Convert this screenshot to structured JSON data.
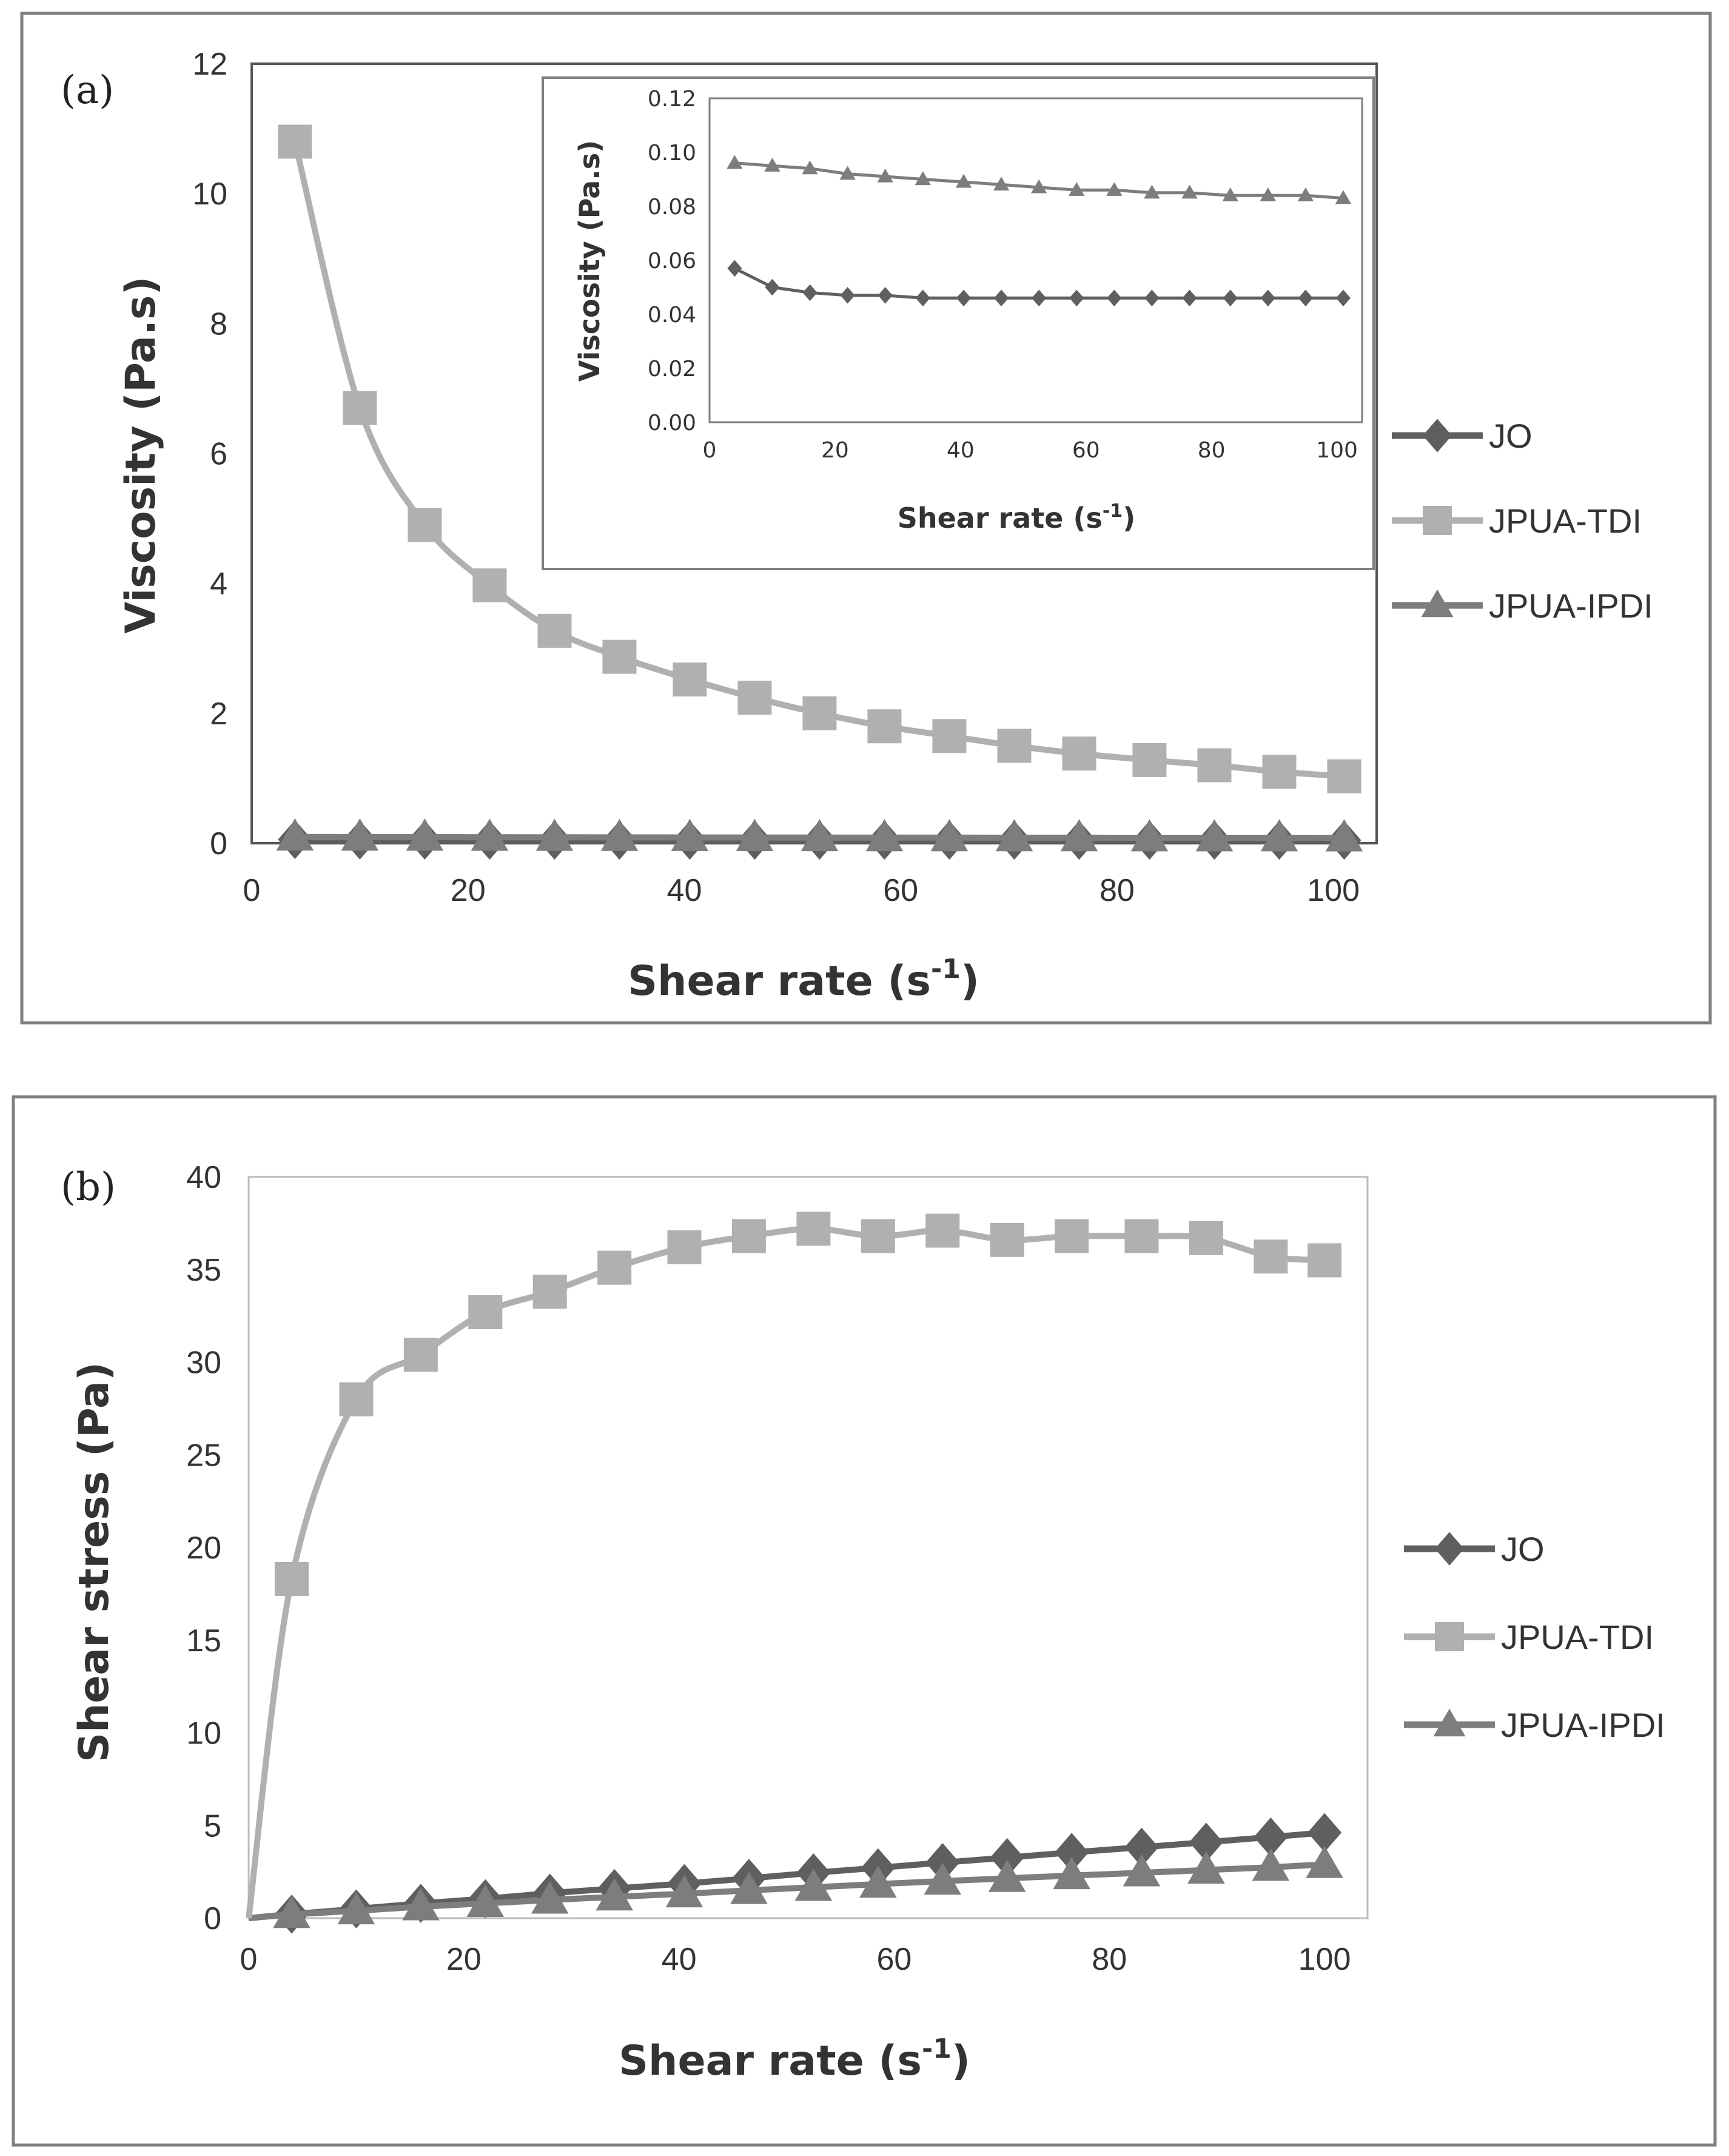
{
  "chart_data": [
    {
      "type": "line",
      "panel_label": "(a)",
      "xlabel": "Shear rate (s",
      "xlabel_sup": "-1",
      "xlabel_close": ")",
      "ylabel": "Viscosity (Pa.s)",
      "xlim": [
        0,
        100
      ],
      "ylim": [
        0,
        12
      ],
      "xticks": [
        "0",
        "20",
        "40",
        "60",
        "80",
        "100"
      ],
      "yticks": [
        "0",
        "2",
        "4",
        "6",
        "8",
        "10",
        "12"
      ],
      "x": [
        4,
        10,
        16,
        22,
        28,
        34,
        40.5,
        46.5,
        52.5,
        58.5,
        64.5,
        70.5,
        76.5,
        83,
        89,
        95,
        101
      ],
      "series": [
        {
          "name": "JO",
          "marker": "diamond",
          "color": "#5f5f5f",
          "values": [
            0.057,
            0.05,
            0.048,
            0.047,
            0.047,
            0.046,
            0.046,
            0.046,
            0.046,
            0.046,
            0.046,
            0.046,
            0.046,
            0.046,
            0.046,
            0.046,
            0.046
          ]
        },
        {
          "name": "JPUA-TDI",
          "marker": "square",
          "color": "#b0b0b0",
          "values": [
            10.8,
            6.7,
            4.9,
            3.97,
            3.27,
            2.87,
            2.52,
            2.24,
            2.0,
            1.8,
            1.65,
            1.5,
            1.38,
            1.28,
            1.2,
            1.1,
            1.03
          ]
        },
        {
          "name": "JPUA-IPDI",
          "marker": "triangle",
          "color": "#7d7d7d",
          "values": [
            0.096,
            0.095,
            0.094,
            0.092,
            0.091,
            0.09,
            0.089,
            0.088,
            0.087,
            0.086,
            0.086,
            0.085,
            0.085,
            0.084,
            0.084,
            0.084,
            0.083
          ]
        }
      ],
      "legend": [
        "JO",
        "JPUA-TDI",
        "JPUA-IPDI"
      ],
      "legend_position": "right",
      "inset": {
        "xlabel": "Shear rate (s",
        "xlabel_sup": "-1",
        "xlabel_close": ")",
        "ylabel": "Viscosity (Pa.s)",
        "xlim": [
          0,
          104
        ],
        "ylim": [
          0,
          0.12
        ],
        "xticks": [
          "0",
          "20",
          "40",
          "60",
          "80",
          "100"
        ],
        "yticks": [
          "0.00",
          "0.02",
          "0.04",
          "0.06",
          "0.08",
          "0.10",
          "0.12"
        ],
        "series_refs": [
          "JO",
          "JPUA-IPDI"
        ]
      }
    },
    {
      "type": "line",
      "panel_label": "(b)",
      "xlabel": "Shear rate (s",
      "xlabel_sup": "-1",
      "xlabel_close": ")",
      "ylabel": "Shear stress (Pa)",
      "xlim": [
        0,
        104
      ],
      "ylim": [
        0,
        40
      ],
      "xticks": [
        "0",
        "20",
        "40",
        "60",
        "80",
        "100"
      ],
      "yticks": [
        "0",
        "5",
        "10",
        "15",
        "20",
        "25",
        "30",
        "35",
        "40"
      ],
      "x": [
        0,
        4,
        10,
        16,
        22,
        28,
        34,
        40.5,
        46.5,
        52.5,
        58.5,
        64.5,
        70.5,
        76.5,
        83,
        89,
        95,
        100
      ],
      "series": [
        {
          "name": "JO",
          "marker": "diamond",
          "color": "#5f5f5f",
          "values": [
            0,
            0.22,
            0.5,
            0.8,
            1.05,
            1.35,
            1.6,
            1.87,
            2.15,
            2.45,
            2.72,
            3.0,
            3.27,
            3.55,
            3.83,
            4.1,
            4.38,
            4.62
          ]
        },
        {
          "name": "JPUA-TDI",
          "marker": "square",
          "color": "#b0b0b0",
          "values": [
            0,
            18.3,
            28.0,
            30.4,
            32.7,
            33.8,
            35.1,
            36.2,
            36.8,
            37.2,
            36.8,
            37.1,
            36.6,
            36.8,
            36.8,
            36.7,
            35.7,
            35.5
          ]
        },
        {
          "name": "JPUA-IPDI",
          "marker": "triangle",
          "color": "#7d7d7d",
          "values": [
            0,
            0.2,
            0.4,
            0.62,
            0.8,
            0.98,
            1.15,
            1.32,
            1.5,
            1.67,
            1.84,
            2.0,
            2.15,
            2.3,
            2.45,
            2.6,
            2.75,
            2.9
          ]
        }
      ],
      "legend": [
        "JO",
        "JPUA-TDI",
        "JPUA-IPDI"
      ],
      "legend_position": "right"
    }
  ]
}
